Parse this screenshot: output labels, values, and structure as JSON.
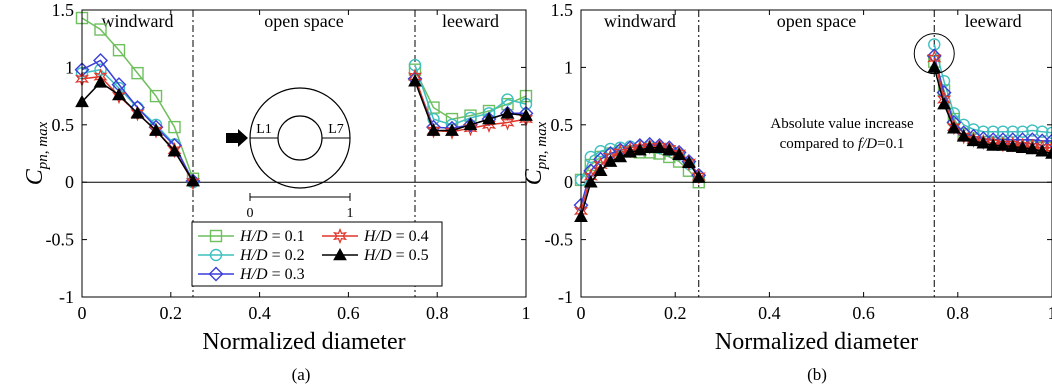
{
  "figure": {
    "captions": [
      "(a)",
      "(b)"
    ]
  },
  "chart_data": [
    {
      "type": "line",
      "panel": "(a)",
      "xlabel": "Normalized diameter",
      "ylabel": "C",
      "ylabel_subscript": "pn, max",
      "xlim": [
        0,
        1
      ],
      "ylim": [
        -1,
        1.5
      ],
      "xticks": [
        0,
        0.2,
        0.4,
        0.6,
        0.8,
        1
      ],
      "xtick_labels": [
        "0",
        "0.2",
        "0.4",
        "0.6",
        "0.8",
        "1"
      ],
      "yticks": [
        -1,
        -0.5,
        0,
        0.5,
        1,
        1.5
      ],
      "ytick_labels": [
        "-1",
        "-0.5",
        "0",
        "0.5",
        "1",
        "1.5"
      ],
      "grid": false,
      "zero_line": true,
      "region_dividers": [
        0.25,
        0.75
      ],
      "region_labels": [
        {
          "text": "windward",
          "x": 0.125
        },
        {
          "text": "open space",
          "x": 0.5
        },
        {
          "text": "leeward",
          "x": 0.875
        }
      ],
      "legend": {
        "placement": "bottom-left",
        "title_parts": [
          "H/D",
          " = "
        ]
      },
      "inset": {
        "arrow": true,
        "labels": [
          "L1",
          "L7"
        ],
        "scale_labels": [
          "0",
          "1"
        ]
      },
      "series": [
        {
          "name": "0.1",
          "color": "#6fbf5f",
          "marker": "square",
          "windward": {
            "x": [
              0,
              0.0417,
              0.0833,
              0.125,
              0.1667,
              0.2083,
              0.25
            ],
            "y": [
              1.43,
              1.33,
              1.15,
              0.95,
              0.75,
              0.48,
              0.03
            ]
          },
          "leeward": {
            "x": [
              0.75,
              0.7917,
              0.8333,
              0.875,
              0.9167,
              0.9583,
              1
            ],
            "y": [
              0.98,
              0.65,
              0.55,
              0.58,
              0.62,
              0.68,
              0.75
            ]
          }
        },
        {
          "name": "0.2",
          "color": "#3fbfbf",
          "marker": "circle",
          "windward": {
            "x": [
              0,
              0.0417,
              0.0833,
              0.125,
              0.1667,
              0.2083,
              0.25
            ],
            "y": [
              0.95,
              0.98,
              0.82,
              0.65,
              0.5,
              0.33,
              0.0
            ]
          },
          "leeward": {
            "x": [
              0.75,
              0.7917,
              0.8333,
              0.875,
              0.9167,
              0.9583,
              1
            ],
            "y": [
              1.02,
              0.55,
              0.5,
              0.56,
              0.6,
              0.72,
              0.68
            ]
          }
        },
        {
          "name": "0.3",
          "color": "#3a3fd8",
          "marker": "diamond",
          "windward": {
            "x": [
              0,
              0.0417,
              0.0833,
              0.125,
              0.1667,
              0.2083,
              0.25
            ],
            "y": [
              0.98,
              1.06,
              0.85,
              0.65,
              0.48,
              0.32,
              0.01
            ]
          },
          "leeward": {
            "x": [
              0.75,
              0.7917,
              0.8333,
              0.875,
              0.9167,
              0.9583,
              1
            ],
            "y": [
              0.9,
              0.48,
              0.47,
              0.5,
              0.55,
              0.6,
              0.6
            ]
          }
        },
        {
          "name": "0.4",
          "color": "#e0362c",
          "marker": "star",
          "windward": {
            "x": [
              0,
              0.0417,
              0.0833,
              0.125,
              0.1667,
              0.2083,
              0.25
            ],
            "y": [
              0.9,
              0.92,
              0.75,
              0.6,
              0.45,
              0.28,
              0.0
            ]
          },
          "leeward": {
            "x": [
              0.75,
              0.7917,
              0.8333,
              0.875,
              0.9167,
              0.9583,
              1
            ],
            "y": [
              0.92,
              0.45,
              0.44,
              0.47,
              0.5,
              0.52,
              0.55
            ]
          }
        },
        {
          "name": "0.5",
          "color": "#000000",
          "marker": "triangle",
          "windward": {
            "x": [
              0,
              0.0417,
              0.0833,
              0.125,
              0.1667,
              0.2083,
              0.25
            ],
            "y": [
              0.7,
              0.87,
              0.76,
              0.6,
              0.45,
              0.27,
              0.01
            ]
          },
          "leeward": {
            "x": [
              0.75,
              0.7917,
              0.8333,
              0.875,
              0.9167,
              0.9583,
              1
            ],
            "y": [
              0.88,
              0.45,
              0.45,
              0.5,
              0.55,
              0.6,
              0.58
            ]
          }
        }
      ]
    },
    {
      "type": "line",
      "panel": "(b)",
      "xlabel": "Normalized diameter",
      "ylabel": "C",
      "ylabel_subscript": "pn, max",
      "xlim": [
        0,
        1
      ],
      "ylim": [
        -1,
        1.5
      ],
      "xticks": [
        0,
        0.2,
        0.4,
        0.6,
        0.8,
        1
      ],
      "xtick_labels": [
        "0",
        "0.2",
        "0.4",
        "0.6",
        "0.8",
        "1"
      ],
      "yticks": [
        -1,
        -0.5,
        0,
        0.5,
        1,
        1.5
      ],
      "ytick_labels": [
        "-1",
        "-0.5",
        "0",
        "0.5",
        "1",
        "1.5"
      ],
      "grid": false,
      "zero_line": true,
      "region_dividers": [
        0.25,
        0.75
      ],
      "region_labels": [
        {
          "text": "windward",
          "x": 0.125
        },
        {
          "text": "open space",
          "x": 0.5
        },
        {
          "text": "leeward",
          "x": 0.875
        }
      ],
      "annotation": {
        "lines": [
          "Absolute value increase",
          "compared to "
        ],
        "italic": "f/D",
        "suffix": "=0.1",
        "circle_at": {
          "x": 0.75,
          "y": 1.12
        }
      },
      "series": [
        {
          "name": "0.1",
          "color": "#6fbf5f",
          "marker": "square",
          "windward": {
            "x": [
              0,
              0.0208,
              0.0417,
              0.0625,
              0.0833,
              0.1042,
              0.125,
              0.1458,
              0.1667,
              0.1875,
              0.2083,
              0.2292,
              0.25
            ],
            "y": [
              0.02,
              0.15,
              0.22,
              0.25,
              0.27,
              0.27,
              0.26,
              0.26,
              0.25,
              0.22,
              0.18,
              0.1,
              0.0
            ]
          },
          "leeward": {
            "x": [
              0.75,
              0.7708,
              0.7917,
              0.8125,
              0.8333,
              0.8542,
              0.875,
              0.8958,
              0.9167,
              0.9375,
              0.9583,
              0.9792,
              1
            ],
            "y": [
              1.05,
              0.8,
              0.55,
              0.42,
              0.38,
              0.35,
              0.34,
              0.33,
              0.32,
              0.32,
              0.31,
              0.3,
              0.3
            ]
          }
        },
        {
          "name": "0.2",
          "color": "#3fbfbf",
          "marker": "circle",
          "windward": {
            "x": [
              0,
              0.0208,
              0.0417,
              0.0625,
              0.0833,
              0.1042,
              0.125,
              0.1458,
              0.1667,
              0.1875,
              0.2083,
              0.2292,
              0.25
            ],
            "y": [
              0.02,
              0.22,
              0.27,
              0.29,
              0.3,
              0.31,
              0.31,
              0.31,
              0.3,
              0.28,
              0.24,
              0.16,
              0.05
            ]
          },
          "leeward": {
            "x": [
              0.75,
              0.7708,
              0.7917,
              0.8125,
              0.8333,
              0.8542,
              0.875,
              0.8958,
              0.9167,
              0.9375,
              0.9583,
              0.9792,
              1
            ],
            "y": [
              1.2,
              0.88,
              0.6,
              0.5,
              0.46,
              0.44,
              0.44,
              0.44,
              0.44,
              0.44,
              0.45,
              0.44,
              0.43
            ]
          }
        },
        {
          "name": "0.3",
          "color": "#3a3fd8",
          "marker": "diamond",
          "windward": {
            "x": [
              0,
              0.0208,
              0.0417,
              0.0625,
              0.0833,
              0.1042,
              0.125,
              0.1458,
              0.1667,
              0.1875,
              0.2083,
              0.2292,
              0.25
            ],
            "y": [
              -0.2,
              0.1,
              0.2,
              0.25,
              0.28,
              0.3,
              0.32,
              0.33,
              0.32,
              0.3,
              0.26,
              0.18,
              0.06
            ]
          },
          "leeward": {
            "x": [
              0.75,
              0.7708,
              0.7917,
              0.8125,
              0.8333,
              0.8542,
              0.875,
              0.8958,
              0.9167,
              0.9375,
              0.9583,
              0.9792,
              1
            ],
            "y": [
              1.1,
              0.78,
              0.52,
              0.43,
              0.4,
              0.38,
              0.37,
              0.37,
              0.37,
              0.37,
              0.37,
              0.36,
              0.36
            ]
          }
        },
        {
          "name": "0.4",
          "color": "#e0362c",
          "marker": "star",
          "windward": {
            "x": [
              0,
              0.0208,
              0.0417,
              0.0625,
              0.0833,
              0.1042,
              0.125,
              0.1458,
              0.1667,
              0.1875,
              0.2083,
              0.2292,
              0.25
            ],
            "y": [
              -0.25,
              0.05,
              0.15,
              0.22,
              0.26,
              0.28,
              0.3,
              0.31,
              0.31,
              0.29,
              0.25,
              0.17,
              0.05
            ]
          },
          "leeward": {
            "x": [
              0.75,
              0.7708,
              0.7917,
              0.8125,
              0.8333,
              0.8542,
              0.875,
              0.8958,
              0.9167,
              0.9375,
              0.9583,
              0.9792,
              1
            ],
            "y": [
              1.08,
              0.72,
              0.48,
              0.4,
              0.37,
              0.35,
              0.34,
              0.33,
              0.33,
              0.32,
              0.31,
              0.3,
              0.3
            ]
          }
        },
        {
          "name": "0.5",
          "color": "#000000",
          "marker": "triangle",
          "windward": {
            "x": [
              0,
              0.0208,
              0.0417,
              0.0625,
              0.0833,
              0.1042,
              0.125,
              0.1458,
              0.1667,
              0.1875,
              0.2083,
              0.2292,
              0.25
            ],
            "y": [
              -0.3,
              0.0,
              0.1,
              0.18,
              0.22,
              0.26,
              0.28,
              0.3,
              0.3,
              0.28,
              0.24,
              0.17,
              0.04
            ]
          },
          "leeward": {
            "x": [
              0.75,
              0.7708,
              0.7917,
              0.8125,
              0.8333,
              0.8542,
              0.875,
              0.8958,
              0.9167,
              0.9375,
              0.9583,
              0.9792,
              1
            ],
            "y": [
              1.0,
              0.68,
              0.47,
              0.4,
              0.36,
              0.34,
              0.32,
              0.32,
              0.31,
              0.3,
              0.29,
              0.27,
              0.25
            ]
          }
        }
      ]
    }
  ]
}
